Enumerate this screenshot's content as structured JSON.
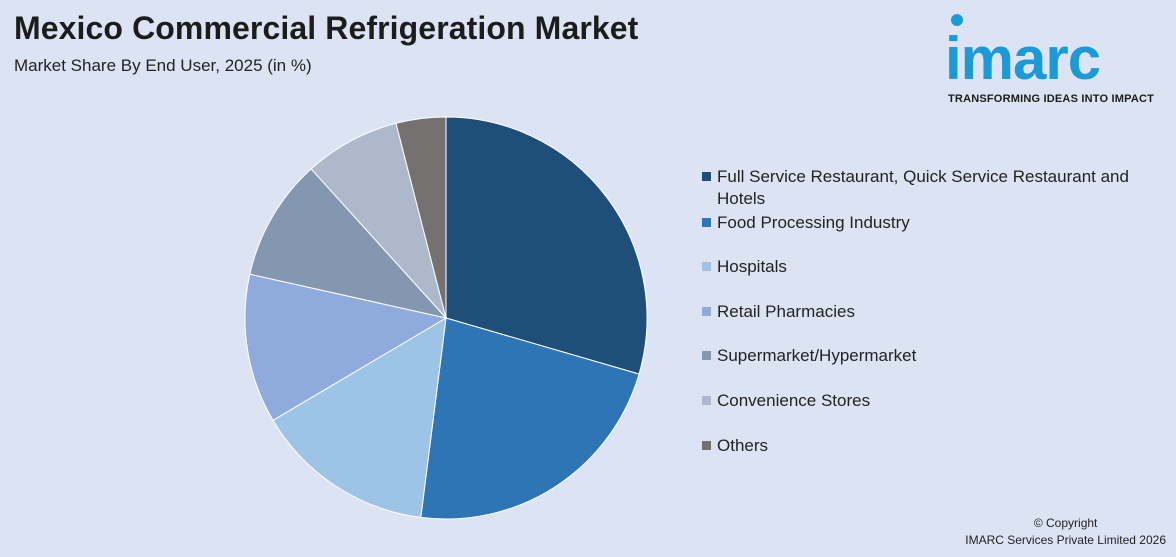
{
  "header": {
    "title": "Mexico Commercial Refrigeration Market",
    "subtitle": "Market Share By End User, 2025 (in %)"
  },
  "logo": {
    "word": "imarc",
    "tagline": "TRANSFORMING IDEAS INTO IMPACT"
  },
  "footer": {
    "line1": "© Copyright",
    "line2": "IMARC Services Private Limited 2026"
  },
  "chart_data": {
    "type": "pie",
    "title": "Mexico Commercial Refrigeration Market",
    "subtitle": "Market Share By End User, 2025 (in %)",
    "legend_position": "right",
    "categories": [
      "Full Service Restaurant, Quick Service Restaurant and Hotels",
      "Food Processing Industry",
      "Hospitals",
      "Retail Pharmacies",
      "Supermarket/Hypermarket",
      "Convenience Stores",
      "Others"
    ],
    "values": [
      29.5,
      22.5,
      14.5,
      12.0,
      9.8,
      7.7,
      4.0
    ],
    "colors": [
      "#1f4e79",
      "#2e75b6",
      "#9dc3e6",
      "#8faadc",
      "#8497b0",
      "#adb9ca",
      "#767171"
    ]
  }
}
